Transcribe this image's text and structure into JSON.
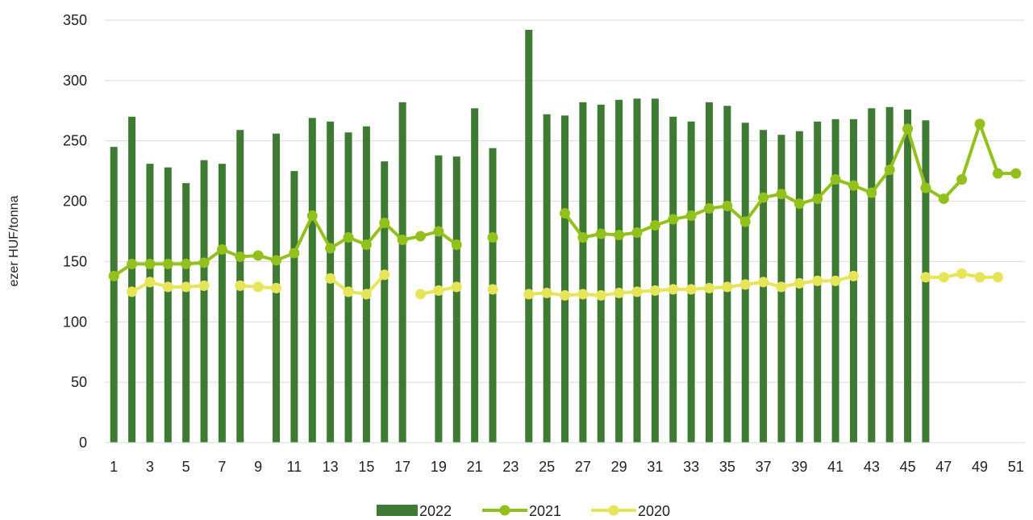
{
  "chart_data": {
    "type": "bar",
    "title": "",
    "xlabel": "",
    "ylabel": "ezer HUF/tonna",
    "ylim": [
      0,
      350
    ],
    "yticks": [
      0,
      50,
      100,
      150,
      200,
      250,
      300,
      350
    ],
    "grid": true,
    "legend_position": "bottom",
    "x": [
      1,
      2,
      3,
      4,
      5,
      6,
      7,
      8,
      9,
      10,
      11,
      12,
      13,
      14,
      15,
      16,
      17,
      18,
      19,
      20,
      21,
      22,
      23,
      24,
      25,
      26,
      27,
      28,
      29,
      30,
      31,
      32,
      33,
      34,
      35,
      36,
      37,
      38,
      39,
      40,
      41,
      42,
      43,
      44,
      45,
      46,
      47,
      48,
      49,
      50,
      51
    ],
    "x_tick_labels": [
      "1",
      "3",
      "5",
      "7",
      "9",
      "11",
      "13",
      "15",
      "17",
      "19",
      "21",
      "23",
      "25",
      "27",
      "29",
      "31",
      "33",
      "35",
      "37",
      "39",
      "41",
      "43",
      "45",
      "47",
      "49",
      "51"
    ],
    "series": [
      {
        "name": "2022",
        "type": "bar",
        "color": "#3f7a35",
        "values": [
          245,
          270,
          231,
          228,
          215,
          234,
          231,
          259,
          null,
          256,
          225,
          269,
          266,
          257,
          262,
          233,
          282,
          null,
          238,
          237,
          277,
          244,
          null,
          342,
          272,
          271,
          282,
          280,
          284,
          285,
          285,
          270,
          266,
          282,
          279,
          265,
          259,
          255,
          258,
          266,
          268,
          268,
          277,
          278,
          276,
          267,
          null,
          null,
          null,
          null,
          null
        ]
      },
      {
        "name": "2021",
        "type": "line",
        "color": "#92c01c",
        "values": [
          138,
          148,
          148,
          148,
          148,
          149,
          160,
          154,
          155,
          151,
          157,
          188,
          161,
          170,
          164,
          182,
          168,
          171,
          175,
          164,
          null,
          170,
          null,
          null,
          null,
          190,
          170,
          173,
          172,
          174,
          180,
          185,
          188,
          194,
          196,
          183,
          203,
          206,
          198,
          202,
          218,
          213,
          207,
          226,
          260,
          211,
          202,
          218,
          264,
          223,
          223
        ]
      },
      {
        "name": "2020",
        "type": "line",
        "color": "#e6e55a",
        "values": [
          null,
          125,
          133,
          129,
          129,
          130,
          null,
          130,
          129,
          128,
          null,
          null,
          136,
          125,
          123,
          139,
          null,
          123,
          126,
          129,
          null,
          127,
          null,
          123,
          124,
          122,
          123,
          122,
          124,
          125,
          126,
          127,
          127,
          128,
          129,
          131,
          133,
          129,
          132,
          134,
          134,
          138,
          null,
          null,
          null,
          137,
          137,
          140,
          137,
          137,
          null
        ]
      }
    ]
  }
}
